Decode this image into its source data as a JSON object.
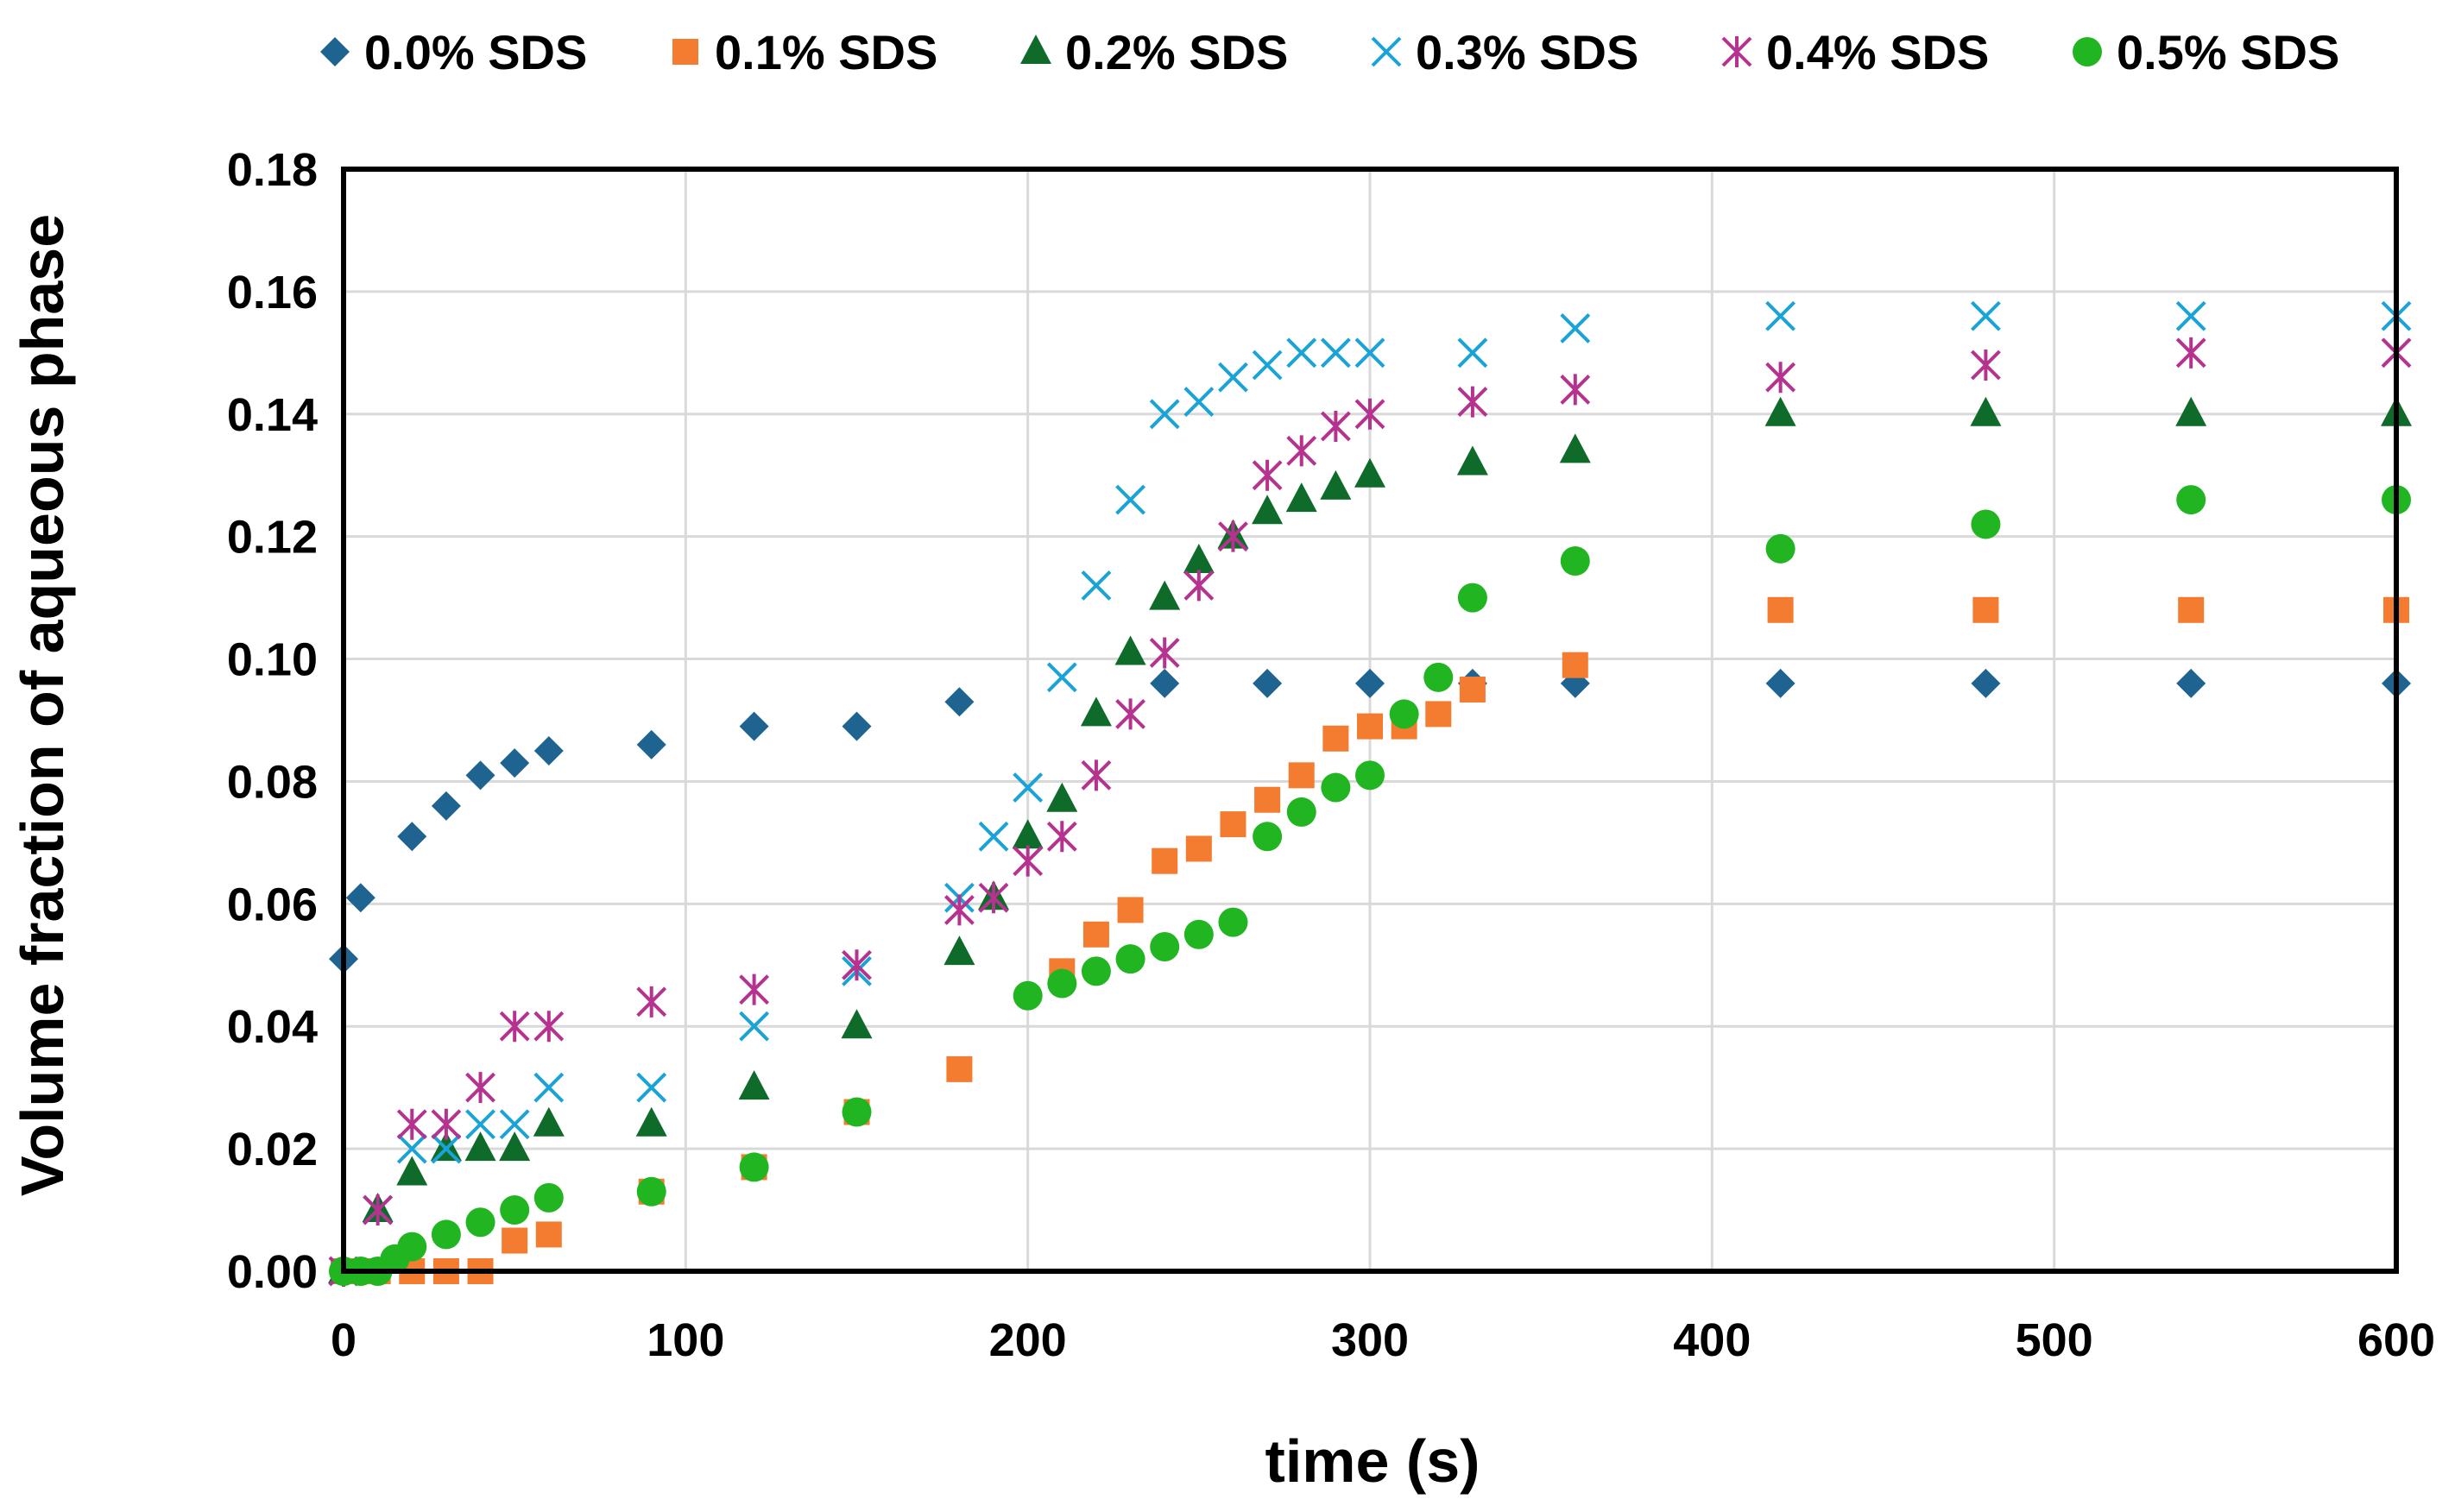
{
  "chart_data": {
    "type": "scatter",
    "title": "",
    "xlabel": "time (s)",
    "ylabel": "Volume fraction of aqueous phase",
    "xlim": [
      0,
      600
    ],
    "ylim": [
      0,
      0.18
    ],
    "xticks": [
      "0",
      "100",
      "200",
      "300",
      "400",
      "500",
      "600"
    ],
    "yticks": [
      "0.00",
      "0.02",
      "0.04",
      "0.06",
      "0.08",
      "0.10",
      "0.12",
      "0.14",
      "0.16",
      "0.18"
    ],
    "grid": true,
    "legend_position": "top",
    "series": [
      {
        "name": "0.0% SDS",
        "marker": "diamond",
        "color": "#1f6391",
        "x": [
          0,
          5,
          20,
          30,
          40,
          50,
          60,
          90,
          120,
          150,
          180,
          240,
          270,
          300,
          330,
          360,
          420,
          480,
          540,
          600
        ],
        "y": [
          0.051,
          0.061,
          0.071,
          0.076,
          0.081,
          0.083,
          0.085,
          0.086,
          0.089,
          0.089,
          0.093,
          0.096,
          0.096,
          0.096,
          0.096,
          0.096,
          0.096,
          0.096,
          0.096,
          0.096
        ]
      },
      {
        "name": "0.1% SDS",
        "marker": "square",
        "color": "#f47c30",
        "x": [
          0,
          10,
          20,
          30,
          40,
          50,
          60,
          90,
          120,
          150,
          180,
          210,
          220,
          230,
          240,
          250,
          260,
          270,
          280,
          290,
          300,
          310,
          320,
          330,
          360,
          420,
          480,
          540,
          600
        ],
        "y": [
          0,
          0,
          0,
          0,
          0,
          0.005,
          0.006,
          0.013,
          0.017,
          0.026,
          0.033,
          0.049,
          0.055,
          0.059,
          0.067,
          0.069,
          0.073,
          0.077,
          0.081,
          0.087,
          0.089,
          0.089,
          0.091,
          0.095,
          0.099,
          0.108,
          0.108,
          0.108,
          0.108
        ]
      },
      {
        "name": "0.2% SDS",
        "marker": "triangle",
        "color": "#0f6b2a",
        "x": [
          0,
          10,
          20,
          30,
          40,
          50,
          60,
          90,
          120,
          150,
          180,
          190,
          200,
          210,
          220,
          230,
          240,
          250,
          260,
          270,
          280,
          290,
          300,
          330,
          360,
          420,
          480,
          540,
          600
        ],
        "y": [
          0,
          0.01,
          0.016,
          0.02,
          0.02,
          0.02,
          0.024,
          0.024,
          0.03,
          0.04,
          0.052,
          0.061,
          0.071,
          0.077,
          0.091,
          0.101,
          0.11,
          0.116,
          0.12,
          0.124,
          0.126,
          0.128,
          0.13,
          0.132,
          0.134,
          0.14,
          0.14,
          0.14,
          0.14
        ]
      },
      {
        "name": "0.3% SDS",
        "marker": "x",
        "color": "#1aa3d6",
        "x": [
          0,
          10,
          20,
          30,
          40,
          50,
          60,
          90,
          120,
          150,
          180,
          190,
          200,
          210,
          220,
          230,
          240,
          250,
          260,
          270,
          280,
          290,
          300,
          330,
          360,
          420,
          480,
          540,
          600
        ],
        "y": [
          0,
          0.01,
          0.02,
          0.02,
          0.024,
          0.024,
          0.03,
          0.03,
          0.04,
          0.049,
          0.061,
          0.071,
          0.079,
          0.097,
          0.112,
          0.126,
          0.14,
          0.142,
          0.146,
          0.148,
          0.15,
          0.15,
          0.15,
          0.15,
          0.154,
          0.156,
          0.156,
          0.156,
          0.156
        ]
      },
      {
        "name": "0.4% SDS",
        "marker": "asterisk",
        "color": "#b5338f",
        "x": [
          0,
          10,
          20,
          30,
          40,
          50,
          60,
          90,
          120,
          150,
          180,
          190,
          200,
          210,
          220,
          230,
          240,
          250,
          260,
          270,
          280,
          290,
          300,
          330,
          360,
          420,
          480,
          540,
          600
        ],
        "y": [
          0,
          0.01,
          0.024,
          0.024,
          0.03,
          0.04,
          0.04,
          0.044,
          0.046,
          0.05,
          0.059,
          0.061,
          0.067,
          0.071,
          0.081,
          0.091,
          0.101,
          0.112,
          0.12,
          0.13,
          0.134,
          0.138,
          0.14,
          0.142,
          0.144,
          0.146,
          0.148,
          0.15,
          0.15
        ]
      },
      {
        "name": "0.5% SDS",
        "marker": "circle",
        "color": "#22b522",
        "x": [
          0,
          5,
          10,
          15,
          20,
          30,
          40,
          50,
          60,
          90,
          120,
          150,
          200,
          210,
          220,
          230,
          240,
          250,
          260,
          270,
          280,
          290,
          300,
          310,
          320,
          330,
          360,
          420,
          480,
          540,
          600
        ],
        "y": [
          0,
          0,
          0,
          0.002,
          0.004,
          0.006,
          0.008,
          0.01,
          0.012,
          0.013,
          0.017,
          0.026,
          0.045,
          0.047,
          0.049,
          0.051,
          0.053,
          0.055,
          0.057,
          0.071,
          0.075,
          0.079,
          0.081,
          0.091,
          0.097,
          0.11,
          0.116,
          0.118,
          0.122,
          0.126,
          0.126
        ]
      }
    ]
  }
}
